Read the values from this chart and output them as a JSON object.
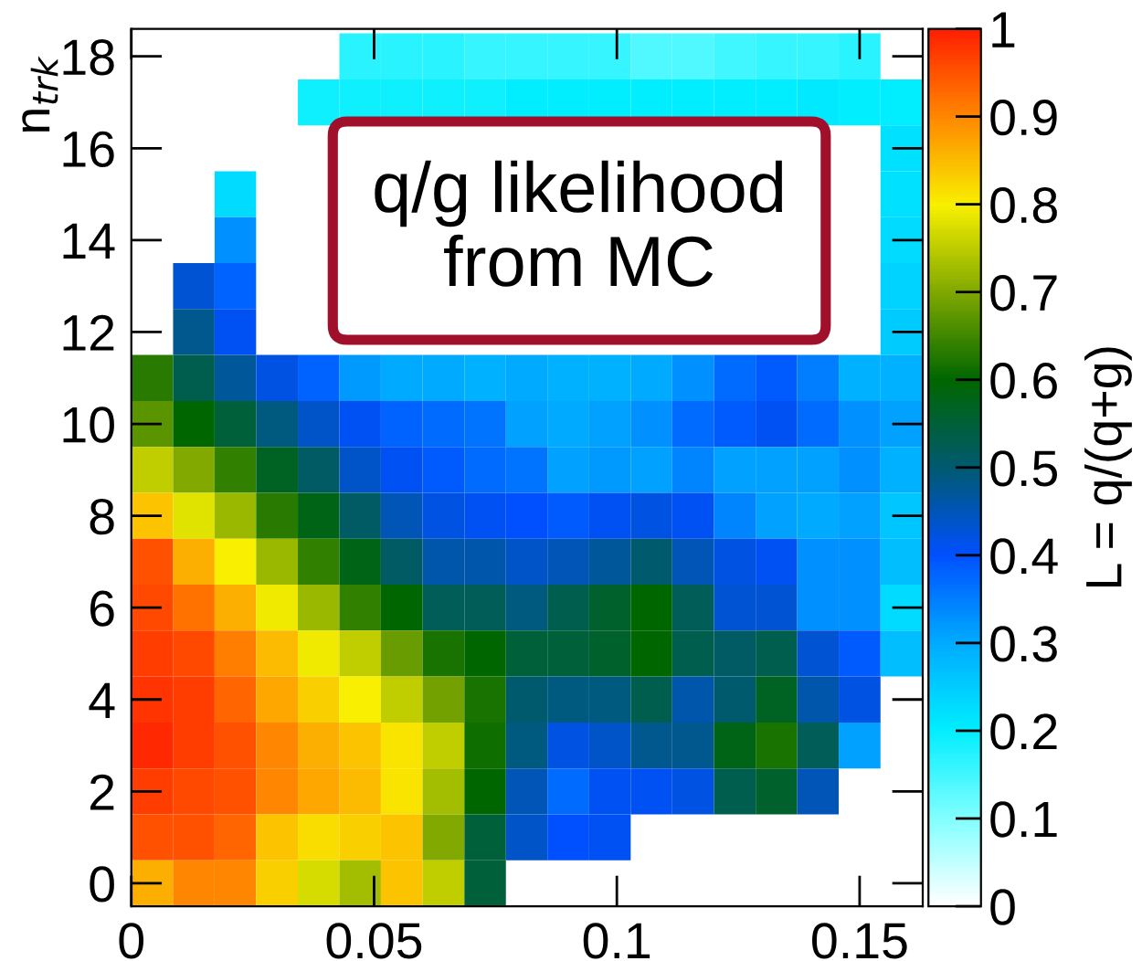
{
  "chart_data": {
    "type": "heatmap",
    "ylabel": "n$_{trk}$",
    "clabel": "L = q/(q+g)",
    "annotations": [
      "q/g likelihood\nfrom MC"
    ],
    "x": [
      0.0043,
      0.0129,
      0.0214,
      0.03,
      0.0386,
      0.0471,
      0.0557,
      0.0643,
      0.0729,
      0.0814,
      0.09,
      0.0986,
      0.1071,
      0.1157,
      0.1243,
      0.1329,
      0.1414,
      0.15,
      0.1586
    ],
    "y": [
      18,
      17,
      16,
      15,
      14,
      13,
      12,
      11,
      10,
      9,
      8,
      7,
      6,
      5,
      4,
      3,
      2,
      1,
      0
    ],
    "xlim": [
      0,
      0.163
    ],
    "xticks": [
      0,
      0.05,
      0.1,
      0.15
    ],
    "ylim": [
      -0.5,
      18.6
    ],
    "yticks": [
      0,
      2,
      4,
      6,
      8,
      10,
      12,
      14,
      16,
      18
    ],
    "clim": [
      0,
      1
    ],
    "cticks": [
      0,
      0.1,
      0.2,
      0.3,
      0.4,
      0.5,
      0.6,
      0.7,
      0.8,
      0.9,
      1
    ],
    "colors": [
      "#ffffff",
      "#80ffff",
      "#00eeff",
      "#00aaff",
      "#0050ff",
      "#005a70",
      "#006600",
      "#80a800",
      "#f8f000",
      "#ff8800",
      "#ff2000"
    ],
    "cells": [
      [
        null,
        null,
        null,
        null,
        null,
        0.17,
        0.17,
        0.17,
        0.16,
        0.16,
        0.16,
        0.16,
        0.14,
        0.14,
        0.15,
        0.16,
        0.16,
        0.17,
        null
      ],
      [
        null,
        null,
        null,
        null,
        0.19,
        0.19,
        0.19,
        0.19,
        0.19,
        0.2,
        0.2,
        0.2,
        0.2,
        0.2,
        0.2,
        0.2,
        0.21,
        0.2,
        0.2
      ],
      [
        null,
        null,
        null,
        null,
        null,
        null,
        null,
        null,
        null,
        null,
        null,
        null,
        null,
        null,
        null,
        null,
        null,
        null,
        0.22
      ],
      [
        null,
        null,
        0.23,
        null,
        null,
        null,
        null,
        null,
        null,
        null,
        null,
        null,
        null,
        null,
        null,
        null,
        null,
        null,
        0.22
      ],
      [
        null,
        null,
        0.33,
        null,
        null,
        null,
        null,
        null,
        null,
        null,
        null,
        null,
        null,
        null,
        null,
        null,
        null,
        null,
        0.23
      ],
      [
        null,
        0.43,
        0.38,
        null,
        null,
        null,
        null,
        null,
        null,
        null,
        null,
        null,
        null,
        null,
        null,
        null,
        null,
        null,
        0.24
      ],
      [
        null,
        0.48,
        0.41,
        null,
        null,
        null,
        null,
        null,
        null,
        null,
        null,
        null,
        null,
        null,
        null,
        null,
        null,
        null,
        0.25
      ],
      [
        0.63,
        0.53,
        0.47,
        0.42,
        0.38,
        0.32,
        0.3,
        0.3,
        0.29,
        0.3,
        0.29,
        0.29,
        0.3,
        0.33,
        0.37,
        0.39,
        0.35,
        0.29,
        0.29
      ],
      [
        0.67,
        0.6,
        0.55,
        0.49,
        0.44,
        0.41,
        0.38,
        0.37,
        0.36,
        0.31,
        0.3,
        0.31,
        0.33,
        0.37,
        0.39,
        0.41,
        0.37,
        0.33,
        0.31
      ],
      [
        0.75,
        0.7,
        0.64,
        0.57,
        0.51,
        0.44,
        0.41,
        0.39,
        0.37,
        0.36,
        0.31,
        0.32,
        0.31,
        0.34,
        0.31,
        0.31,
        0.31,
        0.33,
        0.29
      ],
      [
        0.84,
        0.78,
        0.72,
        0.63,
        0.58,
        0.51,
        0.45,
        0.42,
        0.41,
        0.4,
        0.39,
        0.41,
        0.42,
        0.41,
        0.34,
        0.31,
        0.3,
        0.31,
        0.26
      ],
      [
        0.95,
        0.86,
        0.8,
        0.72,
        0.64,
        0.58,
        0.51,
        0.46,
        0.46,
        0.44,
        0.45,
        0.47,
        0.5,
        0.45,
        0.42,
        0.41,
        0.33,
        0.33,
        0.27
      ],
      [
        0.96,
        0.92,
        0.86,
        0.79,
        0.72,
        0.64,
        0.6,
        0.52,
        0.52,
        0.49,
        0.53,
        0.56,
        0.6,
        0.52,
        0.43,
        0.43,
        0.33,
        0.33,
        0.23
      ],
      [
        0.97,
        0.96,
        0.91,
        0.85,
        0.79,
        0.75,
        0.68,
        0.62,
        0.6,
        0.55,
        0.55,
        0.56,
        0.6,
        0.53,
        0.51,
        0.53,
        0.43,
        0.39,
        0.27
      ],
      [
        0.98,
        0.97,
        0.93,
        0.87,
        0.83,
        0.8,
        0.75,
        0.69,
        0.62,
        0.5,
        0.49,
        0.49,
        0.53,
        0.46,
        0.5,
        0.57,
        0.46,
        0.42,
        null
      ],
      [
        0.99,
        0.97,
        0.95,
        0.9,
        0.86,
        0.84,
        0.81,
        0.75,
        0.61,
        0.49,
        0.42,
        0.44,
        0.48,
        0.48,
        0.58,
        0.62,
        0.52,
        0.31,
        null
      ],
      [
        0.97,
        0.96,
        0.95,
        0.9,
        0.87,
        0.85,
        0.81,
        0.73,
        0.6,
        0.45,
        0.37,
        0.41,
        0.41,
        0.42,
        0.53,
        0.56,
        0.45,
        null,
        null
      ],
      [
        0.95,
        0.95,
        0.93,
        0.84,
        0.82,
        0.83,
        0.84,
        0.7,
        0.55,
        0.44,
        0.4,
        0.41,
        null,
        null,
        null,
        null,
        null,
        null,
        null
      ],
      [
        0.86,
        0.9,
        0.9,
        0.83,
        0.77,
        0.73,
        0.84,
        0.75,
        0.55,
        null,
        null,
        null,
        null,
        null,
        null,
        null,
        null,
        null,
        null
      ]
    ]
  }
}
